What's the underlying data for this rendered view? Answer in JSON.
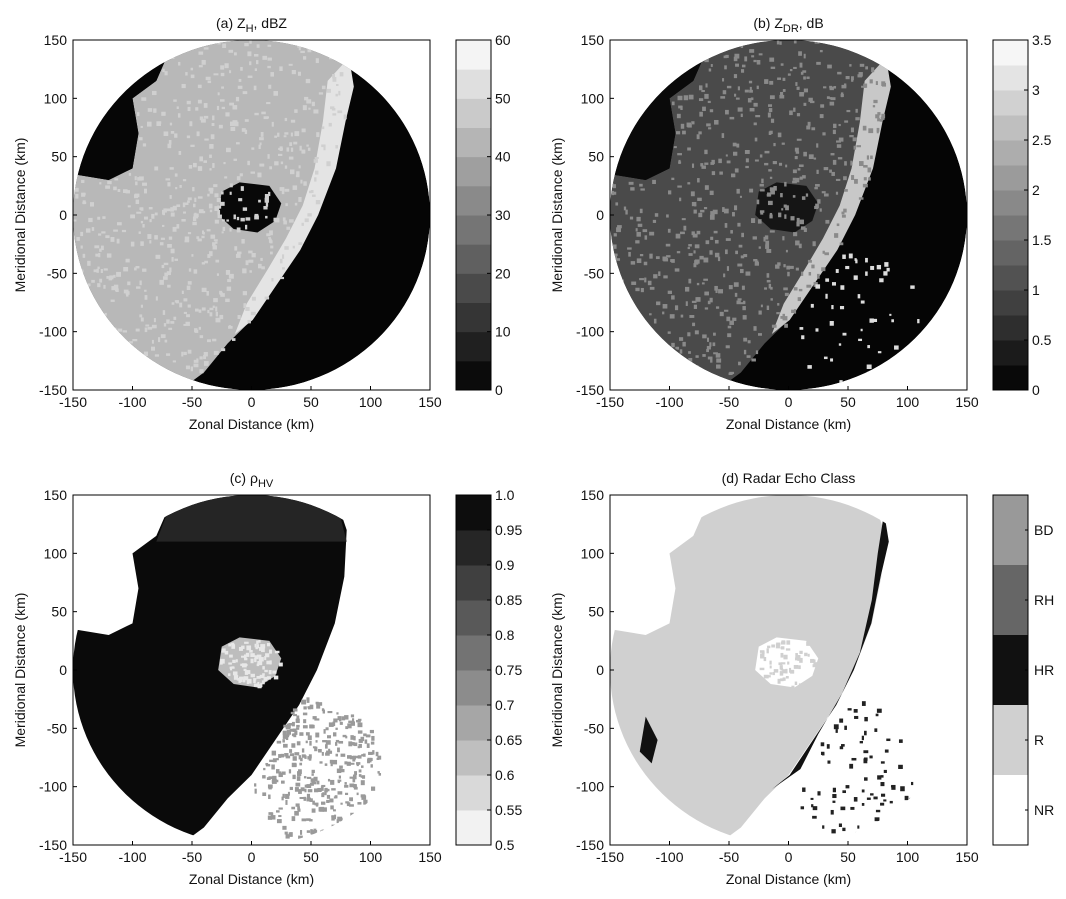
{
  "chart_data": [
    {
      "type": "image",
      "title": [
        "(a) Z",
        "H",
        ", dBZ"
      ],
      "xlabel": "Zonal Distance (km)",
      "ylabel": "Meridional Distance (km)",
      "xlim": [
        -150,
        150
      ],
      "ylim": [
        -150,
        150
      ],
      "xticks": [
        -150,
        -100,
        -50,
        0,
        50,
        100,
        150
      ],
      "yticks": [
        -150,
        -100,
        -50,
        0,
        50,
        100,
        150
      ],
      "colorbar": {
        "colormap": "gray",
        "lim": [
          0,
          60
        ],
        "step": 5,
        "ticks": [
          0,
          10,
          20,
          30,
          40,
          50,
          60
        ]
      }
    },
    {
      "type": "image",
      "title": [
        "(b) Z",
        "DR",
        ", dB"
      ],
      "xlabel": "Zonal Distance (km)",
      "ylabel": "Meridional Distance (km)",
      "xlim": [
        -150,
        150
      ],
      "ylim": [
        -150,
        150
      ],
      "xticks": [
        -150,
        -100,
        -50,
        0,
        50,
        100,
        150
      ],
      "yticks": [
        -150,
        -100,
        -50,
        0,
        50,
        100,
        150
      ],
      "colorbar": {
        "colormap": "gray",
        "lim": [
          0,
          3.5
        ],
        "step": 0.25,
        "ticks": [
          0,
          0.5,
          1,
          1.5,
          2,
          2.5,
          3,
          3.5
        ]
      }
    },
    {
      "type": "image",
      "title": [
        "(c) ρ",
        "HV"
      ],
      "xlabel": "Zonal Distance (km)",
      "ylabel": "Meridional Distance (km)",
      "xlim": [
        -150,
        150
      ],
      "ylim": [
        -150,
        150
      ],
      "xticks": [
        -150,
        -100,
        -50,
        0,
        50,
        100,
        150
      ],
      "yticks": [
        -150,
        -100,
        -50,
        0,
        50,
        100,
        150
      ],
      "colorbar": {
        "colormap": "gray_r",
        "lim": [
          0.5,
          1
        ],
        "step": 0.05,
        "ticks": [
          0.5,
          0.55,
          0.6,
          0.65,
          0.7,
          0.75,
          0.8,
          0.85,
          0.9,
          0.95,
          {
            "value": 1,
            "label": "1.0"
          }
        ]
      }
    },
    {
      "type": "image",
      "title": [
        "(d) Radar Echo Class"
      ],
      "xlabel": "Zonal Distance (km)",
      "ylabel": "Meridional Distance (km)",
      "xlim": [
        -150,
        150
      ],
      "ylim": [
        -150,
        150
      ],
      "xticks": [
        -150,
        -100,
        -50,
        0,
        50,
        100,
        150
      ],
      "yticks": [
        -150,
        -100,
        -50,
        0,
        50,
        100,
        150
      ],
      "colorbar": {
        "colormap": "categorical",
        "categories": [
          "NR",
          "R",
          "HR",
          "RH",
          "BD"
        ],
        "colors": [
          "#ffffff",
          "#d0d0d0",
          "#111111",
          "#666666",
          "#999999"
        ]
      }
    }
  ]
}
